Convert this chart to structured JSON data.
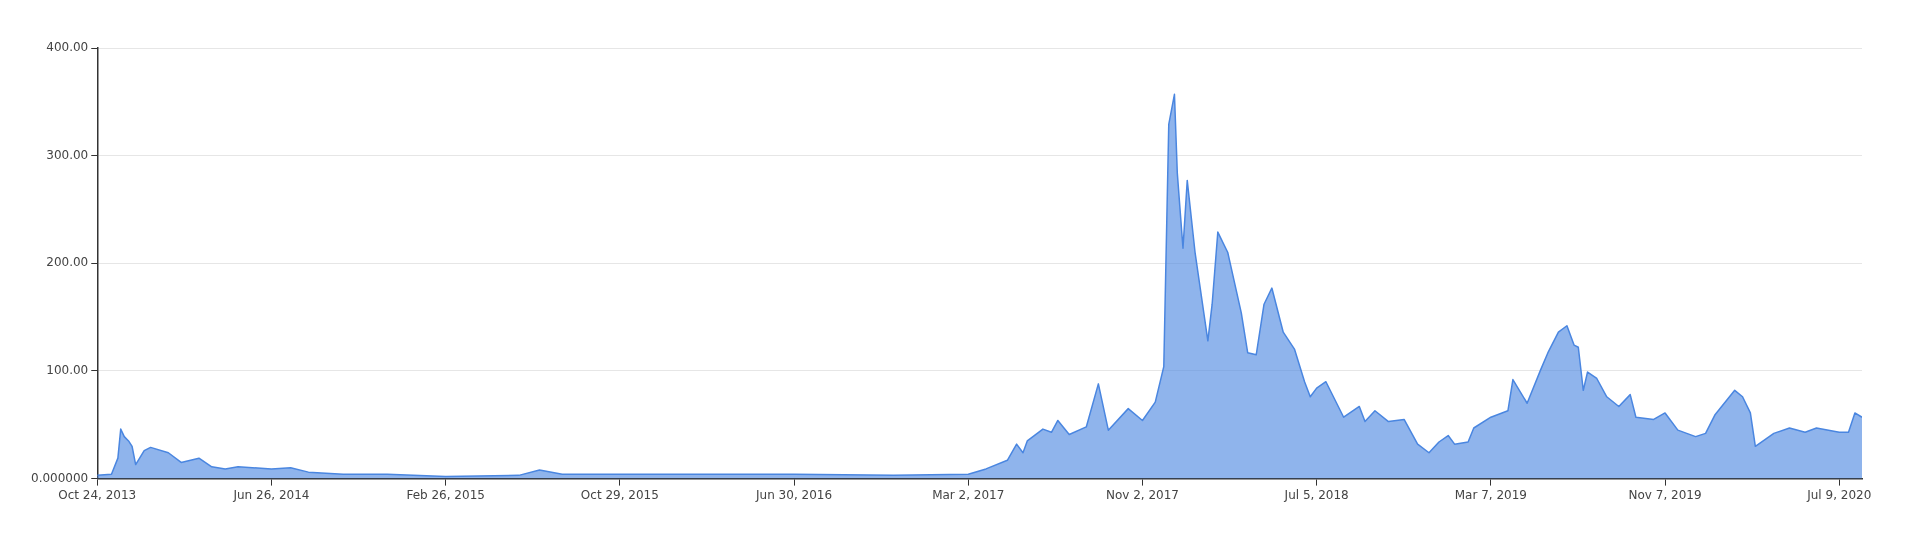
{
  "chart_data": {
    "type": "area",
    "x": [
      "2013-10-24",
      "2013-11-13",
      "2013-11-22",
      "2013-11-26",
      "2013-12-01",
      "2013-12-07",
      "2013-12-12",
      "2013-12-17",
      "2013-12-29",
      "2014-01-07",
      "2014-02-01",
      "2014-02-19",
      "2014-03-16",
      "2014-04-03",
      "2014-04-22",
      "2014-05-10",
      "2014-06-26",
      "2014-07-23",
      "2014-08-17",
      "2014-10-05",
      "2014-12-06",
      "2015-02-26",
      "2015-06-09",
      "2015-07-08",
      "2015-08-09",
      "2015-10-29",
      "2016-01-20",
      "2016-06-30",
      "2016-11-17",
      "2017-03-02",
      "2017-03-27",
      "2017-04-26",
      "2017-05-09",
      "2017-05-18",
      "2017-05-24",
      "2017-06-15",
      "2017-06-27",
      "2017-07-06",
      "2017-07-22",
      "2017-08-15",
      "2017-09-01",
      "2017-09-15",
      "2017-10-13",
      "2017-11-02",
      "2017-11-20",
      "2017-12-02",
      "2017-12-09",
      "2017-12-17",
      "2017-12-21",
      "2017-12-29",
      "2018-01-04",
      "2018-01-15",
      "2018-02-02",
      "2018-02-08",
      "2018-02-16",
      "2018-03-02",
      "2018-03-21",
      "2018-03-30",
      "2018-04-11",
      "2018-04-22",
      "2018-05-03",
      "2018-05-19",
      "2018-06-04",
      "2018-06-18",
      "2018-06-26",
      "2018-07-05",
      "2018-07-18",
      "2018-08-12",
      "2018-09-03",
      "2018-09-11",
      "2018-09-25",
      "2018-10-14",
      "2018-11-05",
      "2018-11-24",
      "2018-12-10",
      "2018-12-24",
      "2019-01-06",
      "2019-01-15",
      "2019-02-03",
      "2019-02-11",
      "2019-03-07",
      "2019-03-31",
      "2019-04-07",
      "2019-04-27",
      "2019-05-16",
      "2019-05-27",
      "2019-06-10",
      "2019-06-22",
      "2019-07-02",
      "2019-07-08",
      "2019-07-15",
      "2019-07-21",
      "2019-08-03",
      "2019-08-17",
      "2019-09-03",
      "2019-09-19",
      "2019-09-27",
      "2019-10-22",
      "2019-11-07",
      "2019-11-25",
      "2019-12-20",
      "2020-01-03",
      "2020-01-16",
      "2020-02-13",
      "2020-02-24",
      "2020-03-06",
      "2020-03-13",
      "2020-04-08",
      "2020-04-30",
      "2020-05-22",
      "2020-06-07",
      "2020-07-09",
      "2020-07-22",
      "2020-07-31",
      "2020-08-10"
    ],
    "series": [
      {
        "color": "#4a86e0",
        "values": [
          3,
          4,
          19,
          46,
          39,
          35,
          30,
          13,
          26,
          29,
          24,
          15,
          19,
          11,
          9,
          11,
          9,
          10,
          6,
          4,
          4,
          2,
          3,
          8,
          4,
          4,
          4,
          4,
          3,
          4,
          9,
          17,
          32,
          24,
          35,
          46,
          43,
          54,
          41,
          48,
          88,
          45,
          65,
          54,
          71,
          104,
          329,
          357,
          284,
          214,
          277,
          210,
          128,
          162,
          229,
          210,
          154,
          117,
          115,
          162,
          177,
          136,
          120,
          90,
          76,
          84,
          90,
          57,
          67,
          53,
          63,
          53,
          55,
          32,
          24,
          34,
          40,
          32,
          34,
          47,
          57,
          63,
          92,
          70,
          101,
          118,
          136,
          142,
          124,
          122,
          82,
          99,
          93,
          76,
          67,
          78,
          57,
          55,
          61,
          45,
          39,
          42,
          59,
          82,
          76,
          61,
          30,
          42,
          47,
          43,
          47,
          43,
          43,
          61,
          57
        ]
      }
    ],
    "xlim": [
      "2013-10-24",
      "2020-08-10"
    ],
    "xticks": [
      {
        "value": "2013-10-24",
        "label": "Oct 24, 2013"
      },
      {
        "value": "2014-06-26",
        "label": "Jun 26, 2014"
      },
      {
        "value": "2015-02-26",
        "label": "Feb 26, 2015"
      },
      {
        "value": "2015-10-29",
        "label": "Oct 29, 2015"
      },
      {
        "value": "2016-06-30",
        "label": "Jun 30, 2016"
      },
      {
        "value": "2017-03-02",
        "label": "Mar 2, 2017"
      },
      {
        "value": "2017-11-02",
        "label": "Nov 2, 2017"
      },
      {
        "value": "2018-07-05",
        "label": "Jul 5, 2018"
      },
      {
        "value": "2019-03-07",
        "label": "Mar 7, 2019"
      },
      {
        "value": "2019-11-07",
        "label": "Nov 7, 2019"
      },
      {
        "value": "2020-07-09",
        "label": "Jul 9, 2020"
      }
    ],
    "ylim": [
      0,
      400
    ],
    "yticks": [
      {
        "value": 0,
        "label": "0.000000"
      },
      {
        "value": 100,
        "label": "100.00"
      },
      {
        "value": 200,
        "label": "200.00"
      },
      {
        "value": 300,
        "label": "300.00"
      },
      {
        "value": 400,
        "label": "400.00"
      }
    ],
    "grid": "y",
    "legend": false,
    "marker": "none"
  }
}
